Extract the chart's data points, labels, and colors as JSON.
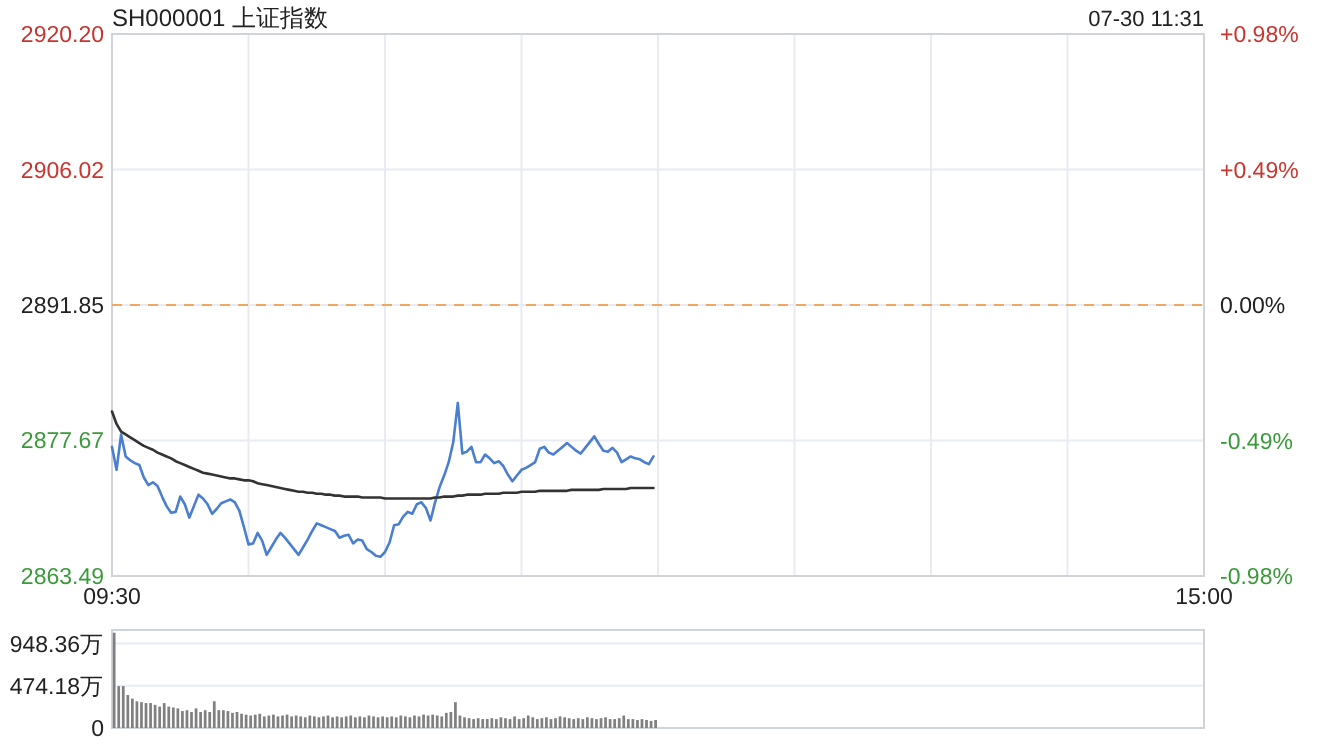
{
  "chart_data": [
    {
      "type": "line",
      "title": "SH000001 上证指数",
      "annotations": [
        "07-30 11:31"
      ],
      "categories": [
        "09:30",
        null,
        null,
        null,
        null,
        null,
        null,
        null,
        null,
        null,
        null,
        null,
        null,
        null,
        null,
        null,
        null,
        null,
        null,
        null,
        null,
        null,
        null,
        null,
        null,
        null,
        null,
        null,
        null,
        null,
        null,
        null,
        null,
        null,
        null,
        null,
        null,
        null,
        null,
        null,
        null,
        null,
        null,
        null,
        null,
        null,
        null,
        null,
        null,
        null,
        null,
        null,
        null,
        null,
        null,
        null,
        null,
        null,
        null,
        null,
        null,
        null,
        null,
        null,
        null,
        null,
        null,
        null,
        null,
        null,
        null,
        null,
        null,
        null,
        null,
        null,
        null,
        null,
        null,
        null,
        null,
        null,
        null,
        null,
        null,
        null,
        null,
        null,
        null,
        null,
        null,
        null,
        null,
        null,
        null,
        null,
        null,
        null,
        null,
        null,
        null,
        null,
        null,
        null,
        null,
        null,
        null,
        null,
        null,
        null,
        null,
        null,
        null,
        null,
        null,
        null,
        null,
        null,
        null,
        null,
        null,
        null,
        null,
        null,
        null,
        null,
        null,
        null,
        null,
        null,
        null,
        null,
        null,
        null,
        null,
        null,
        null,
        null,
        null,
        null,
        null,
        null,
        null,
        null,
        null,
        null,
        null,
        null,
        null,
        null,
        null,
        null,
        null,
        null,
        null,
        null,
        null,
        null,
        null,
        null,
        null,
        null,
        null,
        null,
        null,
        null,
        null,
        null,
        null,
        null,
        null,
        null,
        null,
        null,
        null,
        null,
        null,
        null,
        null,
        null,
        null,
        null,
        null,
        null,
        null,
        null,
        null,
        null,
        null,
        null,
        null,
        null,
        null,
        null,
        null,
        null,
        null,
        null,
        null,
        null,
        null,
        null,
        null,
        null,
        null,
        null,
        null,
        null,
        null,
        null,
        null,
        null,
        null,
        null,
        null,
        null,
        null,
        null,
        null,
        null,
        null,
        null,
        null,
        null,
        null,
        null,
        null,
        null,
        null,
        null,
        null,
        null,
        null,
        null,
        null,
        null,
        null,
        null,
        null,
        null,
        "15:00"
      ],
      "ylim": [
        2863.49,
        2920.2
      ],
      "yticks": [
        2863.49,
        2877.67,
        2891.85,
        2906.02,
        {
          "value": 2920.2,
          "label": "2920.20"
        }
      ],
      "y2lim": [
        -0.98,
        0.98
      ],
      "y2ticks": [
        {
          "value": -0.98,
          "label": "-0.98%"
        },
        {
          "value": -0.49,
          "label": "-0.49%"
        },
        {
          "value": 0,
          "label": "0.00%"
        },
        {
          "value": 0.49,
          "label": "+0.49%"
        },
        {
          "value": 0.98,
          "label": "+0.98%"
        }
      ],
      "grid": true,
      "ref_lines": [
        {
          "axis": "y",
          "value": 2891.85,
          "color": "#f0a860",
          "line_style": "dashed"
        }
      ],
      "series": [
        {
          "color": "#4a7fcf",
          "values": [
            2877.0,
            2874.6,
            2878.3,
            2876.0,
            2875.6,
            2875.3,
            2875.1,
            2873.8,
            2873.0,
            2873.3,
            2872.9,
            2871.8,
            2870.8,
            2870.1,
            2870.2,
            2871.8,
            2871.0,
            2869.6,
            2870.8,
            2872.0,
            2871.6,
            2871.0,
            2870.0,
            2870.5,
            2871.1,
            2871.3,
            2871.5,
            2871.2,
            2870.3,
            2868.6,
            2866.8,
            2866.9,
            2868.0,
            2867.2,
            2865.7,
            2866.5,
            2867.3,
            2868.0,
            2867.5,
            2866.9,
            2866.3,
            2865.7,
            2866.5,
            2867.3,
            2868.2,
            2869.0,
            2868.8,
            2868.6,
            2868.4,
            2868.2,
            2867.5,
            2867.7,
            2867.8,
            2866.9,
            2867.3,
            2867.2,
            2866.3,
            2866.0,
            2865.6,
            2865.5,
            2866.0,
            2867.0,
            2868.8,
            2868.9,
            2869.7,
            2870.2,
            2870.0,
            2871.0,
            2871.2,
            2870.6,
            2869.3,
            2871.2,
            2872.8,
            2874.0,
            2875.4,
            2877.5,
            2881.6,
            2876.3,
            2876.5,
            2877.0,
            2875.4,
            2875.4,
            2876.2,
            2875.8,
            2875.3,
            2875.5,
            2875.0,
            2874.1,
            2873.4,
            2874.0,
            2874.6,
            2874.8,
            2875.1,
            2875.4,
            2876.8,
            2877.0,
            2876.4,
            2876.2,
            2876.6,
            2877.0,
            2877.4,
            2877.0,
            2876.6,
            2876.3,
            2876.9,
            2877.5,
            2878.1,
            2877.3,
            2876.6,
            2876.5,
            2876.9,
            2876.4,
            2875.4,
            2875.7,
            2876.0,
            2875.8,
            2875.7,
            2875.4,
            2875.2,
            2876.0,
            null,
            null,
            null,
            null,
            null,
            null,
            null,
            null,
            null,
            null,
            null,
            null,
            null,
            null,
            null,
            null,
            null,
            null,
            null,
            null,
            null,
            null,
            null,
            null,
            null,
            null,
            null,
            null,
            null,
            null,
            null,
            null,
            null,
            null,
            null,
            null,
            null,
            null,
            null,
            null,
            null,
            null,
            null,
            null,
            null,
            null,
            null,
            null,
            null,
            null,
            null,
            null,
            null,
            null,
            null,
            null,
            null,
            null,
            null,
            null,
            null,
            null,
            null,
            null,
            null,
            null,
            null,
            null,
            null,
            null,
            null,
            null,
            null,
            null,
            null,
            null,
            null,
            null,
            null,
            null,
            null,
            null,
            null,
            null,
            null,
            null,
            null,
            null,
            null,
            null,
            null,
            null,
            null,
            null,
            null,
            null,
            null,
            null,
            null,
            null,
            null,
            null,
            null,
            null,
            null,
            null,
            null,
            null,
            null,
            null,
            null,
            null,
            null,
            null,
            null,
            null,
            null,
            null,
            null,
            null,
            null
          ]
        },
        {
          "color": "#333333",
          "values": [
            2880.7,
            2879.4,
            2878.6,
            2878.3,
            2878.0,
            2877.7,
            2877.4,
            2877.1,
            2876.9,
            2876.7,
            2876.4,
            2876.2,
            2876.0,
            2875.8,
            2875.5,
            2875.3,
            2875.1,
            2874.9,
            2874.7,
            2874.5,
            2874.3,
            2874.2,
            2874.1,
            2874.0,
            2873.9,
            2873.8,
            2873.7,
            2873.7,
            2873.6,
            2873.5,
            2873.5,
            2873.4,
            2873.2,
            2873.1,
            2873.0,
            2872.9,
            2872.8,
            2872.7,
            2872.6,
            2872.5,
            2872.4,
            2872.3,
            2872.3,
            2872.2,
            2872.2,
            2872.1,
            2872.1,
            2872.0,
            2872.0,
            2871.9,
            2871.9,
            2871.8,
            2871.8,
            2871.8,
            2871.8,
            2871.7,
            2871.7,
            2871.7,
            2871.7,
            2871.7,
            2871.6,
            2871.6,
            2871.6,
            2871.6,
            2871.6,
            2871.6,
            2871.6,
            2871.6,
            2871.6,
            2871.6,
            2871.6,
            2871.7,
            2871.7,
            2871.8,
            2871.8,
            2871.8,
            2871.9,
            2871.9,
            2872.0,
            2872.0,
            2872.0,
            2872.0,
            2872.1,
            2872.1,
            2872.1,
            2872.1,
            2872.2,
            2872.2,
            2872.2,
            2872.2,
            2872.3,
            2872.3,
            2872.3,
            2872.3,
            2872.4,
            2872.4,
            2872.4,
            2872.4,
            2872.4,
            2872.4,
            2872.4,
            2872.5,
            2872.5,
            2872.5,
            2872.5,
            2872.5,
            2872.5,
            2872.5,
            2872.6,
            2872.6,
            2872.6,
            2872.6,
            2872.6,
            2872.6,
            2872.7,
            2872.7,
            2872.7,
            2872.7,
            2872.7,
            2872.7,
            null,
            null,
            null,
            null,
            null,
            null,
            null,
            null,
            null,
            null,
            null,
            null,
            null,
            null,
            null,
            null,
            null,
            null,
            null,
            null,
            null,
            null,
            null,
            null,
            null,
            null,
            null,
            null,
            null,
            null,
            null,
            null,
            null,
            null,
            null,
            null,
            null,
            null,
            null,
            null,
            null,
            null,
            null,
            null,
            null,
            null,
            null,
            null,
            null,
            null,
            null,
            null,
            null,
            null,
            null,
            null,
            null,
            null,
            null,
            null,
            null,
            null,
            null,
            null,
            null,
            null,
            null,
            null,
            null,
            null,
            null,
            null,
            null,
            null,
            null,
            null,
            null,
            null,
            null,
            null,
            null,
            null,
            null,
            null,
            null,
            null,
            null,
            null,
            null,
            null,
            null,
            null,
            null,
            null,
            null,
            null,
            null,
            null,
            null,
            null,
            null,
            null,
            null,
            null,
            null,
            null,
            null,
            null,
            null,
            null,
            null,
            null,
            null,
            null,
            null,
            null,
            null,
            null,
            null,
            null,
            null
          ]
        }
      ]
    },
    {
      "type": "bar",
      "categories": [
        null,
        null,
        null,
        null,
        null,
        null,
        null,
        null,
        null,
        null,
        null,
        null,
        null,
        null,
        null,
        null,
        null,
        null,
        null,
        null,
        null,
        null,
        null,
        null,
        null,
        null,
        null,
        null,
        null,
        null,
        null,
        null,
        null,
        null,
        null,
        null,
        null,
        null,
        null,
        null,
        null,
        null,
        null,
        null,
        null,
        null,
        null,
        null,
        null,
        null,
        null,
        null,
        null,
        null,
        null,
        null,
        null,
        null,
        null,
        null,
        null,
        null,
        null,
        null,
        null,
        null,
        null,
        null,
        null,
        null,
        null,
        null,
        null,
        null,
        null,
        null,
        null,
        null,
        null,
        null,
        null,
        null,
        null,
        null,
        null,
        null,
        null,
        null,
        null,
        null,
        null,
        null,
        null,
        null,
        null,
        null,
        null,
        null,
        null,
        null,
        null,
        null,
        null,
        null,
        null,
        null,
        null,
        null,
        null,
        null,
        null,
        null,
        null,
        null,
        null,
        null,
        null,
        null,
        null,
        null,
        null,
        null,
        null,
        null,
        null,
        null,
        null,
        null,
        null,
        null,
        null,
        null,
        null,
        null,
        null,
        null,
        null,
        null,
        null,
        null,
        null,
        null,
        null,
        null,
        null,
        null,
        null,
        null,
        null,
        null,
        null,
        null,
        null,
        null,
        null,
        null,
        null,
        null,
        null,
        null,
        null,
        null,
        null,
        null,
        null,
        null,
        null,
        null,
        null,
        null,
        null,
        null,
        null,
        null,
        null,
        null,
        null,
        null,
        null,
        null,
        null,
        null,
        null,
        null,
        null,
        null,
        null,
        null,
        null,
        null,
        null,
        null,
        null,
        null,
        null,
        null,
        null,
        null,
        null,
        null,
        null,
        null,
        null,
        null,
        null,
        null,
        null,
        null,
        null,
        null,
        null,
        null,
        null,
        null,
        null,
        null,
        null,
        null,
        null,
        null,
        null,
        null,
        null,
        null,
        null,
        null,
        null,
        null,
        null,
        null,
        null,
        null,
        null,
        null,
        null,
        null,
        null,
        null,
        null,
        null,
        null
      ],
      "ylim": [
        0,
        1100
      ],
      "yticks": [
        0,
        {
          "value": 474.18,
          "label": "474.18万"
        },
        {
          "value": 948.36,
          "label": "948.36万"
        }
      ],
      "grid": "y",
      "tick_labels": "y",
      "series": [
        {
          "color": "#808080",
          "values": [
            1070,
            470,
            470,
            370,
            330,
            300,
            290,
            280,
            280,
            260,
            240,
            280,
            240,
            230,
            220,
            190,
            200,
            180,
            220,
            180,
            200,
            180,
            300,
            200,
            200,
            190,
            170,
            180,
            160,
            150,
            140,
            150,
            160,
            130,
            140,
            150,
            130,
            140,
            150,
            130,
            140,
            130,
            120,
            140,
            130,
            120,
            130,
            140,
            120,
            130,
            120,
            130,
            140,
            120,
            130,
            120,
            140,
            130,
            120,
            130,
            120,
            130,
            120,
            140,
            130,
            120,
            140,
            130,
            150,
            140,
            150,
            140,
            130,
            170,
            180,
            290,
            140,
            120,
            110,
            100,
            110,
            100,
            100,
            110,
            100,
            120,
            110,
            100,
            130,
            100,
            110,
            140,
            120,
            100,
            110,
            120,
            100,
            110,
            130,
            120,
            110,
            100,
            110,
            100,
            120,
            110,
            100,
            110,
            120,
            100,
            100,
            110,
            140,
            100,
            100,
            90,
            100,
            90,
            80,
            90,
            null,
            null,
            null,
            null,
            null,
            null,
            null,
            null,
            null,
            null,
            null,
            null,
            null,
            null,
            null,
            null,
            null,
            null,
            null,
            null,
            null,
            null,
            null,
            null,
            null,
            null,
            null,
            null,
            null,
            null,
            null,
            null,
            null,
            null,
            null,
            null,
            null,
            null,
            null,
            null,
            null,
            null,
            null,
            null,
            null,
            null,
            null,
            null,
            null,
            null,
            null,
            null,
            null,
            null,
            null,
            null,
            null,
            null,
            null,
            null,
            null,
            null,
            null,
            null,
            null,
            null,
            null,
            null,
            null,
            null,
            null,
            null,
            null,
            null,
            null,
            null,
            null,
            null,
            null,
            null,
            null,
            null,
            null,
            null,
            null,
            null,
            null,
            null,
            null,
            null,
            null,
            null,
            null,
            null,
            null,
            null,
            null,
            null,
            null,
            null,
            null,
            null,
            null,
            null,
            null,
            null,
            null,
            null,
            null,
            null,
            null,
            null,
            null,
            null,
            null,
            null,
            null,
            null,
            null,
            null,
            null
          ]
        }
      ]
    }
  ]
}
